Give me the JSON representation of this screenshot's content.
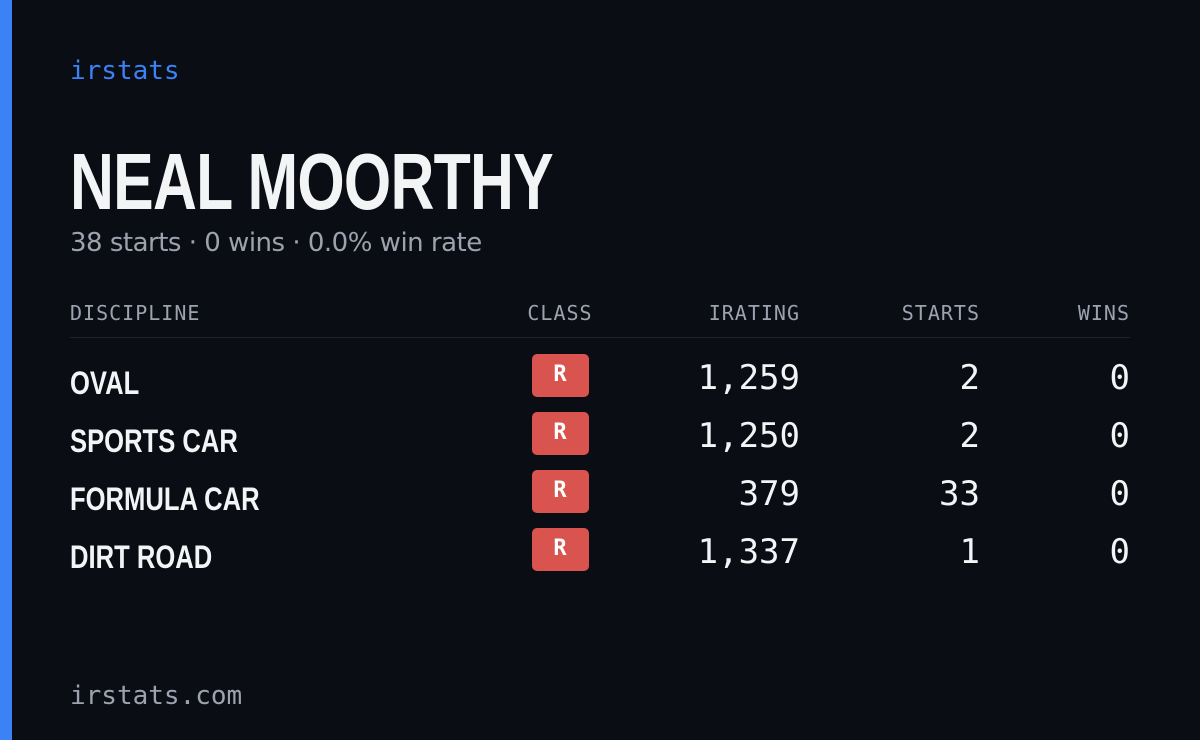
{
  "brand": "irstats",
  "driver": {
    "name": "NEAL MOORTHY",
    "summary": "38 starts · 0 wins · 0.0% win rate"
  },
  "table": {
    "headers": [
      "DISCIPLINE",
      "CLASS",
      "IRATING",
      "STARTS",
      "WINS"
    ],
    "rows": [
      [
        "OVAL",
        "R",
        "1,259",
        "2",
        "0"
      ],
      [
        "SPORTS CAR",
        "R",
        "1,250",
        "2",
        "0"
      ],
      [
        "FORMULA CAR",
        "R",
        "379",
        "33",
        "0"
      ],
      [
        "DIRT ROAD",
        "R",
        "1,337",
        "1",
        "0"
      ]
    ]
  },
  "footer": "irstats.com"
}
